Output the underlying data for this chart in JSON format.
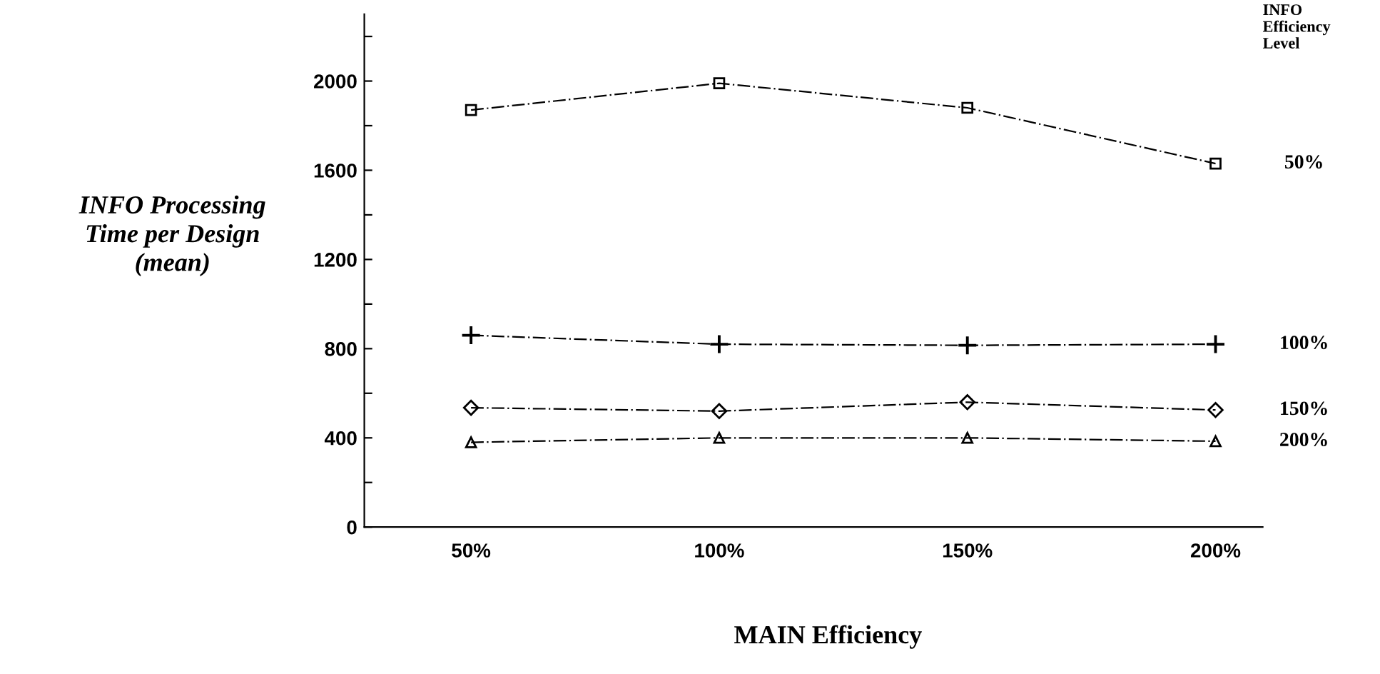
{
  "chart_data": {
    "type": "line",
    "xlabel": "MAIN Efficiency",
    "ylabel": "INFO Processing\nTime per Design\n(mean)",
    "legend_title": "INFO\nEfficiency\nLevel",
    "categories": [
      "50%",
      "100%",
      "150%",
      "200%"
    ],
    "series": [
      {
        "name": "50%",
        "color": "#000000",
        "marker": "square",
        "values": [
          1870,
          1990,
          1880,
          1630
        ]
      },
      {
        "name": "100%",
        "color": "#000000",
        "marker": "cross",
        "values": [
          860,
          820,
          815,
          820
        ]
      },
      {
        "name": "150%",
        "color": "#000000",
        "marker": "diamond",
        "values": [
          535,
          520,
          560,
          525
        ]
      },
      {
        "name": "200%",
        "color": "#000000",
        "marker": "triangle",
        "values": [
          380,
          400,
          400,
          385
        ]
      }
    ],
    "line_style": "dashed",
    "legend": false,
    "grid": false,
    "ylim": [
      0,
      2300
    ],
    "yticks": [
      0,
      {
        "value": 200,
        "label": null
      },
      400,
      {
        "value": 600,
        "label": null
      },
      800,
      {
        "value": 1000,
        "label": null
      },
      1200,
      {
        "value": 1400,
        "label": null
      },
      1600,
      {
        "value": 1800,
        "label": null
      },
      2000,
      {
        "value": 2200,
        "label": null
      }
    ]
  }
}
